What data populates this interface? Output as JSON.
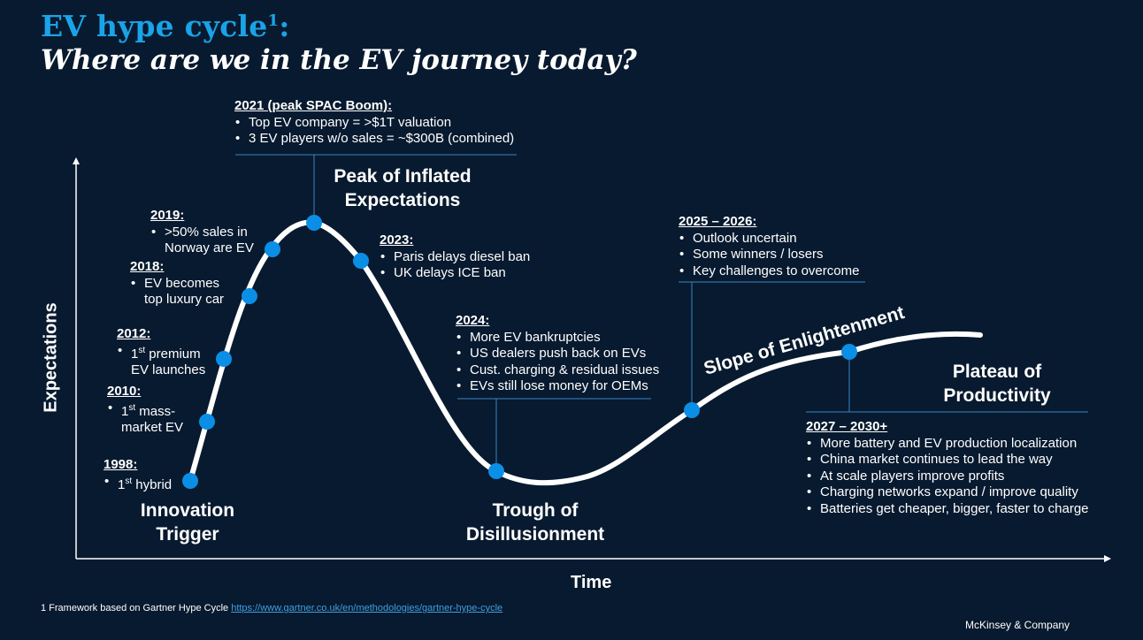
{
  "title": {
    "line1": "EV hype cycle",
    "line1_sup": "1",
    "line1_suffix": ":",
    "line2": "Where are we in the EV journey today?"
  },
  "axes": {
    "x_label": "Time",
    "y_label": "Expectations"
  },
  "phases": {
    "innovation": [
      "Innovation",
      "Trigger"
    ],
    "peak": [
      "Peak of Inflated",
      "Expectations"
    ],
    "trough": [
      "Trough of",
      "Disillusionment"
    ],
    "slope": "Slope of Enlightenment",
    "plateau": [
      "Plateau of",
      "Productivity"
    ]
  },
  "milestones": {
    "m1998": {
      "header": "1998:",
      "items": [
        {
          "pre": "1",
          "sup": "st",
          "post": " hybrid"
        }
      ]
    },
    "m2010": {
      "header": "2010:",
      "items": [
        {
          "pre": "1",
          "sup": "st",
          "post": " mass-",
          "line2": "market EV"
        }
      ]
    },
    "m2012": {
      "header": "2012:",
      "items": [
        {
          "pre": "1",
          "sup": "st",
          "post": " premium",
          "line2": "EV launches"
        }
      ]
    },
    "m2018": {
      "header": "2018:",
      "items": [
        "EV becomes",
        "top luxury car"
      ]
    },
    "m2019": {
      "header": "2019:",
      "items": [
        ">50% sales in",
        "Norway are EV"
      ]
    },
    "m2021": {
      "header": "2021 (peak SPAC Boom):",
      "items": [
        "Top EV company = >$1T valuation",
        "3 EV players w/o sales = ~$300B (combined)"
      ]
    },
    "m2023": {
      "header": "2023:",
      "items": [
        "Paris delays diesel ban",
        "UK delays ICE ban"
      ]
    },
    "m2024": {
      "header": "2024:",
      "items": [
        "More EV bankruptcies",
        "US dealers push back on EVs",
        "Cust. charging & residual issues",
        "EVs still lose money for OEMs"
      ]
    },
    "m2025": {
      "header": "2025 – 2026:",
      "items": [
        "Outlook uncertain",
        "Some winners / losers",
        "Key challenges to overcome"
      ]
    },
    "m2027": {
      "header": "2027 – 2030+",
      "items": [
        "More battery and EV production localization",
        "China market continues to lead the way",
        "At scale players improve profits",
        "Charging networks expand / improve quality",
        "Batteries get cheaper, bigger, faster to charge"
      ]
    }
  },
  "footnote": {
    "text": "1 Framework based on Gartner Hype Cycle ",
    "link": "https://www.gartner.co.uk/en/methodologies/gartner-hype-cycle"
  },
  "brand": "McKinsey & Company",
  "colors": {
    "background": "#081a2f",
    "accent": "#1aa3e8",
    "curve": "#ffffff",
    "dot": "#0b8fe6",
    "line": "#3a84c4"
  }
}
